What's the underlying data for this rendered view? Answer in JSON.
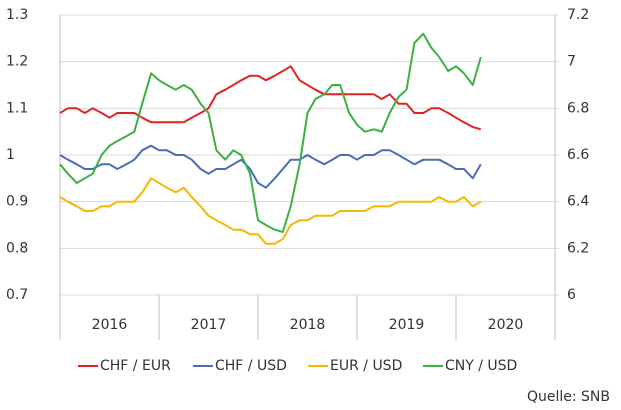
{
  "chart_data": {
    "type": "line",
    "categories": [
      "2016",
      "2017",
      "2018",
      "2019",
      "2020"
    ],
    "x": [
      2016.0,
      2016.08,
      2016.17,
      2016.25,
      2016.33,
      2016.42,
      2016.5,
      2016.58,
      2016.67,
      2016.75,
      2016.83,
      2016.92,
      2017.0,
      2017.08,
      2017.17,
      2017.25,
      2017.33,
      2017.42,
      2017.5,
      2017.58,
      2017.67,
      2017.75,
      2017.83,
      2017.92,
      2018.0,
      2018.08,
      2018.17,
      2018.25,
      2018.33,
      2018.42,
      2018.5,
      2018.58,
      2018.67,
      2018.75,
      2018.83,
      2018.92,
      2019.0,
      2019.08,
      2019.17,
      2019.25,
      2019.33,
      2019.42,
      2019.5,
      2019.58,
      2019.67,
      2019.75,
      2019.83,
      2019.92,
      2020.0,
      2020.08,
      2020.17,
      2020.25
    ],
    "xlim": [
      2016,
      2021
    ],
    "ylim": [
      0.7,
      1.3
    ],
    "yticks": [
      0.7,
      0.8,
      0.9,
      1,
      1.1,
      1.2,
      1.3
    ],
    "y2lim": [
      6,
      7.2
    ],
    "y2ticks": [
      6,
      6.2,
      6.4,
      6.6,
      6.8,
      7,
      7.2
    ],
    "grid": true,
    "legend": "bottom",
    "source": "Quelle: SNB",
    "series": [
      {
        "name": "CHF / EUR",
        "color": "#e02424",
        "values": [
          1.09,
          1.1,
          1.1,
          1.09,
          1.1,
          1.09,
          1.08,
          1.09,
          1.09,
          1.09,
          1.08,
          1.07,
          1.07,
          1.07,
          1.07,
          1.07,
          1.08,
          1.09,
          1.1,
          1.13,
          1.14,
          1.15,
          1.16,
          1.17,
          1.17,
          1.16,
          1.17,
          1.18,
          1.19,
          1.16,
          1.15,
          1.14,
          1.13,
          1.13,
          1.13,
          1.13,
          1.13,
          1.13,
          1.13,
          1.12,
          1.13,
          1.11,
          1.11,
          1.09,
          1.09,
          1.1,
          1.1,
          1.09,
          1.08,
          1.07,
          1.06,
          1.055
        ]
      },
      {
        "name": "CHF / USD",
        "color": "#4a6db5",
        "values": [
          1.0,
          0.99,
          0.98,
          0.97,
          0.97,
          0.98,
          0.98,
          0.97,
          0.98,
          0.99,
          1.01,
          1.02,
          1.01,
          1.01,
          1.0,
          1.0,
          0.99,
          0.97,
          0.96,
          0.97,
          0.97,
          0.98,
          0.99,
          0.97,
          0.94,
          0.93,
          0.95,
          0.97,
          0.99,
          0.99,
          1.0,
          0.99,
          0.98,
          0.99,
          1.0,
          1.0,
          0.99,
          1.0,
          1.0,
          1.01,
          1.01,
          1.0,
          0.99,
          0.98,
          0.99,
          0.99,
          0.99,
          0.98,
          0.97,
          0.97,
          0.95,
          0.98
        ]
      },
      {
        "name": "EUR / USD",
        "color": "#f5b800",
        "values": [
          0.91,
          0.9,
          0.89,
          0.88,
          0.88,
          0.89,
          0.89,
          0.9,
          0.9,
          0.9,
          0.92,
          0.95,
          0.94,
          0.93,
          0.92,
          0.93,
          0.91,
          0.89,
          0.87,
          0.86,
          0.85,
          0.84,
          0.84,
          0.83,
          0.83,
          0.81,
          0.81,
          0.82,
          0.85,
          0.86,
          0.86,
          0.87,
          0.87,
          0.87,
          0.88,
          0.88,
          0.88,
          0.88,
          0.89,
          0.89,
          0.89,
          0.9,
          0.9,
          0.9,
          0.9,
          0.9,
          0.91,
          0.9,
          0.9,
          0.91,
          0.89,
          0.9
        ]
      },
      {
        "name": "CNY / USD",
        "color": "#3cb043",
        "axis": "y2",
        "values": [
          6.56,
          6.52,
          6.48,
          6.5,
          6.52,
          6.6,
          6.64,
          6.66,
          6.68,
          6.7,
          6.82,
          6.95,
          6.92,
          6.9,
          6.88,
          6.9,
          6.88,
          6.82,
          6.78,
          6.62,
          6.58,
          6.62,
          6.6,
          6.52,
          6.32,
          6.3,
          6.28,
          6.27,
          6.38,
          6.56,
          6.78,
          6.84,
          6.86,
          6.9,
          6.9,
          6.78,
          6.73,
          6.7,
          6.71,
          6.7,
          6.78,
          6.85,
          6.88,
          7.08,
          7.12,
          7.06,
          7.02,
          6.96,
          6.98,
          6.95,
          6.9,
          7.02
        ]
      }
    ]
  }
}
